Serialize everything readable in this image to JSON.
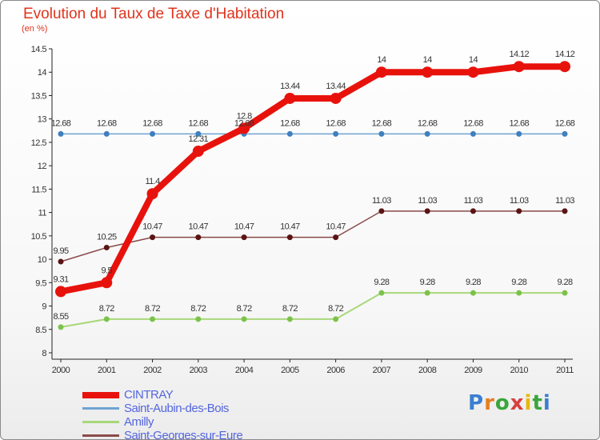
{
  "title": "Evolution du Taux de Taxe d'Habitation",
  "subtitle": "(en %)",
  "logo": {
    "text": "Proxiti",
    "colors": [
      "#3a7fd0",
      "#e67e22",
      "#3aa53a",
      "#d64040",
      "#e6b800",
      "#3aa53a",
      "#3a7fd0"
    ]
  },
  "chart_data": {
    "type": "line",
    "title": "Evolution du Taux de Taxe d'Habitation",
    "ylabel": "(en %)",
    "xlabel": "",
    "x": [
      "2000",
      "2001",
      "2002",
      "2003",
      "2004",
      "2005",
      "2006",
      "2007",
      "2008",
      "2009",
      "2010",
      "2011"
    ],
    "ylim": [
      8,
      14.5
    ],
    "yticks": [
      "8",
      "8.5",
      "9",
      "9.5",
      "10",
      "10.5",
      "11",
      "11.5",
      "12",
      "12.5",
      "13",
      "13.5",
      "14",
      "14.5"
    ],
    "grid": false,
    "legend_position": "bottom-left",
    "series": [
      {
        "name": "CINTRAY",
        "color": "#e8120c",
        "values": [
          9.31,
          9.5,
          11.4,
          12.31,
          12.8,
          13.44,
          13.44,
          14,
          14,
          14,
          14.12,
          14.12
        ],
        "labels": [
          "9.31",
          "9.5",
          "11.4",
          "12.31",
          "12.8",
          "13.44",
          "13.44",
          "14",
          "14",
          "14",
          "14.12",
          "14.12"
        ]
      },
      {
        "name": "Saint-Aubin-des-Bois",
        "color": "#6fa3d3",
        "values": [
          12.68,
          12.68,
          12.68,
          12.68,
          12.68,
          12.68,
          12.68,
          12.68,
          12.68,
          12.68,
          12.68,
          12.68
        ],
        "labels": [
          "12.68",
          "12.68",
          "12.68",
          "12.68",
          "12.68",
          "12.68",
          "12.68",
          "12.68",
          "12.68",
          "12.68",
          "12.68",
          "12.68"
        ]
      },
      {
        "name": "Amilly",
        "color": "#a8d87a",
        "values": [
          8.55,
          8.72,
          8.72,
          8.72,
          8.72,
          8.72,
          8.72,
          9.28,
          9.28,
          9.28,
          9.28,
          9.28
        ],
        "labels": [
          "8.55",
          "8.72",
          "8.72",
          "8.72",
          "8.72",
          "8.72",
          "8.72",
          "9.28",
          "9.28",
          "9.28",
          "9.28",
          "9.28"
        ]
      },
      {
        "name": "Saint-Georges-sur-Eure",
        "color": "#8b4a4a",
        "values": [
          9.95,
          10.25,
          10.47,
          10.47,
          10.47,
          10.47,
          10.47,
          11.03,
          11.03,
          11.03,
          11.03,
          11.03
        ],
        "labels": [
          "9.95",
          "10.25",
          "10.47",
          "10.47",
          "10.47",
          "10.47",
          "10.47",
          "11.03",
          "11.03",
          "11.03",
          "11.03",
          "11.03"
        ]
      }
    ]
  }
}
